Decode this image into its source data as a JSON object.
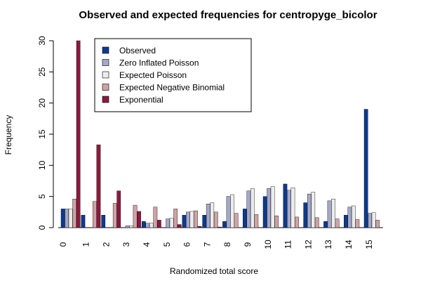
{
  "chart_data": {
    "type": "bar",
    "title": "Observed and expected frequencies for centropyge_bicolor",
    "xlabel": "Randomized total score",
    "ylabel": "Frequency",
    "ylim": [
      0,
      30
    ],
    "yticks": [
      0,
      5,
      10,
      15,
      20,
      25,
      30
    ],
    "categories": [
      "0",
      "1",
      "2",
      "3",
      "4",
      "5",
      "6",
      "7",
      "8",
      "9",
      "10",
      "11",
      "12",
      "13",
      "14",
      "15"
    ],
    "legend_position": "top-left",
    "grid": false,
    "series": [
      {
        "name": "Observed",
        "color": "#0d3a8f",
        "values": [
          3,
          2,
          2,
          0,
          1,
          0,
          2,
          2,
          1,
          3,
          5,
          7,
          4,
          1,
          2,
          19
        ]
      },
      {
        "name": "Zero Inflated Poisson",
        "color": "#a5a8c8",
        "values": [
          3,
          0,
          0,
          0.3,
          0.7,
          1.4,
          2.5,
          3.8,
          5.0,
          5.9,
          6.3,
          6.0,
          5.4,
          4.3,
          3.3,
          2.3
        ]
      },
      {
        "name": "Expected Poisson",
        "color": "#ececec",
        "values": [
          3,
          0,
          0,
          0.3,
          0.7,
          1.5,
          2.6,
          4.0,
          5.3,
          6.3,
          6.6,
          6.4,
          5.7,
          4.6,
          3.5,
          2.4
        ]
      },
      {
        "name": "Expected Negative Binomial",
        "color": "#cfa3a6",
        "values": [
          4.6,
          4.2,
          3.9,
          3.6,
          3.3,
          3.0,
          2.7,
          2.5,
          2.3,
          2.1,
          1.9,
          1.7,
          1.6,
          1.4,
          1.3,
          1.2
        ]
      },
      {
        "name": "Exponential",
        "color": "#8b1a3f",
        "values": [
          30,
          13.3,
          5.9,
          2.6,
          1.2,
          0.5,
          0.2,
          0.1,
          0,
          0,
          0,
          0,
          0,
          0,
          0,
          0
        ]
      }
    ]
  }
}
